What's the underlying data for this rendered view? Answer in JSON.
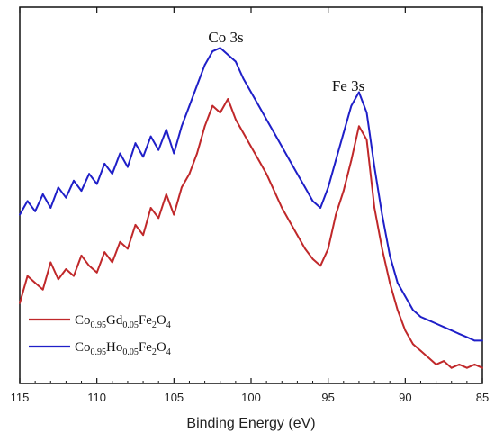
{
  "chart_data": {
    "type": "line",
    "title": "",
    "xlabel": "Binding Energy (eV)",
    "ylabel": "",
    "xlim": [
      115,
      85
    ],
    "x_reversed": true,
    "ylim": [
      0,
      100
    ],
    "y_ticks_shown": false,
    "x_ticks": [
      115,
      110,
      105,
      100,
      95,
      90,
      85
    ],
    "grid": false,
    "legend_position": "bottom-left",
    "annotations": [
      {
        "text": "Co 3s",
        "x": 101.3,
        "y": 92
      },
      {
        "text": "Fe 3s",
        "x": 93.3,
        "y": 74
      }
    ],
    "series": [
      {
        "name": "Co0.95Gd0.05Fe2O4",
        "name_parts": [
          {
            "t": "Co",
            "sub": false
          },
          {
            "t": "0.95",
            "sub": true
          },
          {
            "t": "Gd",
            "sub": false
          },
          {
            "t": "0.05",
            "sub": true
          },
          {
            "t": "Fe",
            "sub": false
          },
          {
            "t": "2",
            "sub": true
          },
          {
            "t": "O",
            "sub": false
          },
          {
            "t": "4",
            "sub": true
          }
        ],
        "color": "#c0282a",
        "x": [
          115,
          114.5,
          114,
          113.5,
          113,
          112.5,
          112,
          111.5,
          111,
          110.5,
          110,
          109.5,
          109,
          108.5,
          108,
          107.5,
          107,
          106.5,
          106,
          105.5,
          105,
          104.5,
          104,
          103.5,
          103,
          102.5,
          102,
          101.5,
          101,
          100.5,
          100,
          99.5,
          99,
          98.5,
          98,
          97.5,
          97,
          96.5,
          96,
          95.5,
          95,
          94.5,
          94,
          93.5,
          93,
          92.5,
          92,
          91.5,
          91,
          90.5,
          90,
          89.5,
          89,
          88.5,
          88,
          87.5,
          87,
          86.5,
          86,
          85.5,
          85
        ],
        "y": [
          22,
          30,
          28,
          26,
          34,
          29,
          32,
          30,
          36,
          33,
          31,
          37,
          34,
          40,
          38,
          45,
          42,
          50,
          47,
          54,
          48,
          56,
          60,
          66,
          74,
          80,
          78,
          82,
          76,
          72,
          68,
          64,
          60,
          55,
          50,
          46,
          42,
          38,
          35,
          33,
          38,
          48,
          55,
          64,
          74,
          70,
          50,
          38,
          28,
          20,
          14,
          10,
          8,
          6,
          4,
          5,
          3,
          4,
          3,
          4,
          3
        ]
      },
      {
        "name": "Co0.95Ho0.05Fe2O4",
        "name_parts": [
          {
            "t": "Co",
            "sub": false
          },
          {
            "t": "0.95",
            "sub": true
          },
          {
            "t": "Ho",
            "sub": false
          },
          {
            "t": "0.05",
            "sub": true
          },
          {
            "t": "Fe",
            "sub": false
          },
          {
            "t": "2",
            "sub": true
          },
          {
            "t": "O",
            "sub": false
          },
          {
            "t": "4",
            "sub": true
          }
        ],
        "color": "#1f1fc8",
        "x": [
          115,
          114.5,
          114,
          113.5,
          113,
          112.5,
          112,
          111.5,
          111,
          110.5,
          110,
          109.5,
          109,
          108.5,
          108,
          107.5,
          107,
          106.5,
          106,
          105.5,
          105,
          104.5,
          104,
          103.5,
          103,
          102.5,
          102,
          101.5,
          101,
          100.5,
          100,
          99.5,
          99,
          98.5,
          98,
          97.5,
          97,
          96.5,
          96,
          95.5,
          95,
          94.5,
          94,
          93.5,
          93,
          92.5,
          92,
          91.5,
          91,
          90.5,
          90,
          89.5,
          89,
          88.5,
          88,
          87.5,
          87,
          86.5,
          86,
          85.5,
          85
        ],
        "y": [
          48,
          52,
          49,
          54,
          50,
          56,
          53,
          58,
          55,
          60,
          57,
          63,
          60,
          66,
          62,
          69,
          65,
          71,
          67,
          73,
          66,
          74,
          80,
          86,
          92,
          96,
          97,
          95,
          93,
          88,
          84,
          80,
          76,
          72,
          68,
          64,
          60,
          56,
          52,
          50,
          56,
          64,
          72,
          80,
          84,
          78,
          62,
          48,
          36,
          28,
          24,
          20,
          18,
          17,
          16,
          15,
          14,
          13,
          12,
          11,
          11
        ]
      }
    ]
  }
}
